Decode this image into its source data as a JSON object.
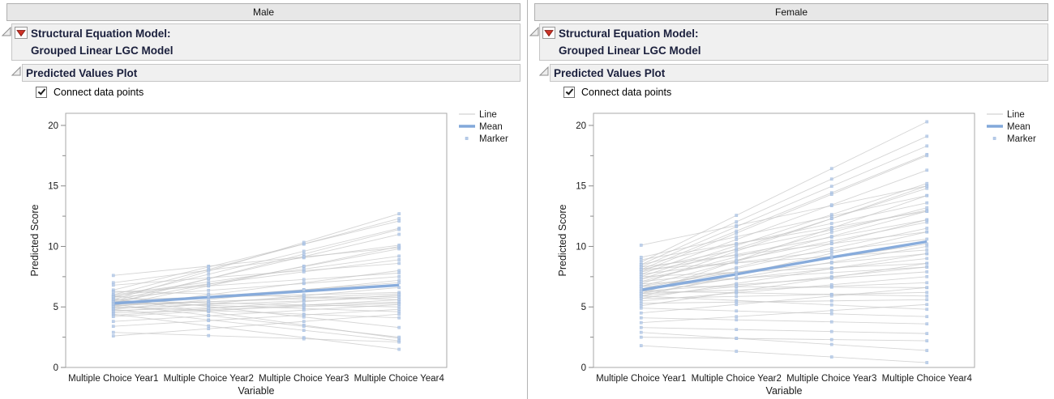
{
  "colors": {
    "mean_line": "#82a8da",
    "individual_line": "#c7c7c7",
    "marker_fill": "#b7cbe8",
    "marker_stroke": "#9db9de",
    "frame": "#a8a8a8",
    "tick": "#8a8a8a",
    "header_text": "#1a1f3c",
    "red_triangle": "#cd3227"
  },
  "panels": [
    {
      "group_label": "Male",
      "outline_title_line1": "Structural Equation Model:",
      "outline_title_line2": "Grouped Linear LGC Model",
      "section_title": "Predicted Values Plot",
      "checkbox": {
        "label": "Connect data points",
        "checked": true
      }
    },
    {
      "group_label": "Female",
      "outline_title_line1": "Structural Equation Model:",
      "outline_title_line2": "Grouped Linear LGC Model",
      "section_title": "Predicted Values Plot",
      "checkbox": {
        "label": "Connect data points",
        "checked": true
      }
    }
  ],
  "chart_data": [
    {
      "type": "line",
      "group": "Male",
      "xlabel": "Variable",
      "ylabel": "Predicted Score",
      "categories": [
        "Multiple Choice Year1",
        "Multiple Choice Year2",
        "Multiple Choice Year3",
        "Multiple Choice Year4"
      ],
      "ylim": [
        0,
        21
      ],
      "yticks": [
        0,
        5,
        10,
        15,
        20
      ],
      "yticks_minor": [
        2.5,
        7.5,
        12.5,
        17.5
      ],
      "grid": false,
      "legend": [
        "Line",
        "Mean",
        "Marker"
      ],
      "legend_position": "top-right",
      "mean_values": [
        5.3,
        5.8,
        6.3,
        6.8
      ],
      "individuals_year1_to_year4": [
        [
          7.6,
          9.9
        ],
        [
          7.0,
          10.1
        ],
        [
          6.8,
          8.6
        ],
        [
          6.4,
          12.1
        ],
        [
          6.3,
          5.6
        ],
        [
          6.2,
          7.8
        ],
        [
          6.0,
          12.3
        ],
        [
          6.0,
          9.2
        ],
        [
          5.9,
          8.9
        ],
        [
          5.9,
          3.3
        ],
        [
          5.8,
          11.5
        ],
        [
          5.8,
          7.5
        ],
        [
          5.7,
          2.4
        ],
        [
          5.6,
          12.7
        ],
        [
          5.6,
          6.2
        ],
        [
          5.5,
          11.0
        ],
        [
          5.5,
          5.0
        ],
        [
          5.4,
          9.8
        ],
        [
          5.4,
          4.6
        ],
        [
          5.3,
          11.4
        ],
        [
          5.3,
          7.0
        ],
        [
          5.2,
          5.9
        ],
        [
          5.2,
          2.5
        ],
        [
          5.1,
          10.0
        ],
        [
          5.1,
          6.1
        ],
        [
          5.0,
          8.0
        ],
        [
          5.0,
          4.1
        ],
        [
          4.9,
          5.8
        ],
        [
          4.8,
          7.2
        ],
        [
          4.8,
          2.2
        ],
        [
          4.7,
          5.4
        ],
        [
          4.6,
          6.6
        ],
        [
          4.5,
          5.3
        ],
        [
          4.4,
          1.5
        ],
        [
          4.3,
          6.0
        ],
        [
          4.2,
          5.6
        ],
        [
          3.8,
          5.2
        ],
        [
          3.4,
          4.8
        ],
        [
          2.9,
          2.1
        ],
        [
          2.6,
          4.4
        ]
      ]
    },
    {
      "type": "line",
      "group": "Female",
      "xlabel": "Variable",
      "ylabel": "Predicted Score",
      "categories": [
        "Multiple Choice Year1",
        "Multiple Choice Year2",
        "Multiple Choice Year3",
        "Multiple Choice Year4"
      ],
      "ylim": [
        0,
        21
      ],
      "yticks": [
        0,
        5,
        10,
        15,
        20
      ],
      "yticks_minor": [
        2.5,
        7.5,
        12.5,
        17.5
      ],
      "grid": false,
      "legend": [
        "Line",
        "Mean",
        "Marker"
      ],
      "legend_position": "top-right",
      "mean_values": [
        6.4,
        7.7,
        9.1,
        10.4
      ],
      "individuals_year1_to_year4": [
        [
          10.1,
          15.0
        ],
        [
          9.1,
          14.2
        ],
        [
          8.9,
          12.9
        ],
        [
          8.7,
          20.3
        ],
        [
          8.5,
          19.1
        ],
        [
          8.5,
          13.6
        ],
        [
          8.3,
          18.3
        ],
        [
          8.3,
          11.2
        ],
        [
          8.1,
          17.6
        ],
        [
          8.1,
          13.0
        ],
        [
          8.1,
          9.7
        ],
        [
          7.9,
          17.5
        ],
        [
          7.9,
          12.2
        ],
        [
          7.7,
          16.3
        ],
        [
          7.7,
          10.6
        ],
        [
          7.5,
          15.2
        ],
        [
          7.5,
          8.6
        ],
        [
          7.3,
          14.8
        ],
        [
          7.3,
          12.0
        ],
        [
          7.1,
          13.2
        ],
        [
          7.1,
          9.4
        ],
        [
          6.9,
          15.0
        ],
        [
          6.9,
          8.3
        ],
        [
          6.7,
          12.9
        ],
        [
          6.7,
          10.2
        ],
        [
          6.7,
          6.6
        ],
        [
          6.5,
          11.5
        ],
        [
          6.5,
          9.0
        ],
        [
          6.3,
          12.2
        ],
        [
          6.3,
          7.9
        ],
        [
          6.3,
          5.9
        ],
        [
          6.1,
          14.2
        ],
        [
          6.1,
          10.0
        ],
        [
          6.1,
          7.0
        ],
        [
          5.9,
          11.2
        ],
        [
          5.9,
          8.3
        ],
        [
          5.9,
          4.8
        ],
        [
          5.7,
          9.4
        ],
        [
          5.7,
          6.2
        ],
        [
          5.5,
          7.5
        ],
        [
          5.3,
          5.6
        ],
        [
          5.1,
          8.6
        ],
        [
          4.9,
          4.2
        ],
        [
          4.5,
          6.6
        ],
        [
          4.1,
          3.6
        ],
        [
          3.7,
          5.2
        ],
        [
          3.3,
          2.8
        ],
        [
          2.9,
          1.4
        ],
        [
          2.5,
          2.2
        ],
        [
          1.8,
          0.4
        ]
      ]
    }
  ]
}
